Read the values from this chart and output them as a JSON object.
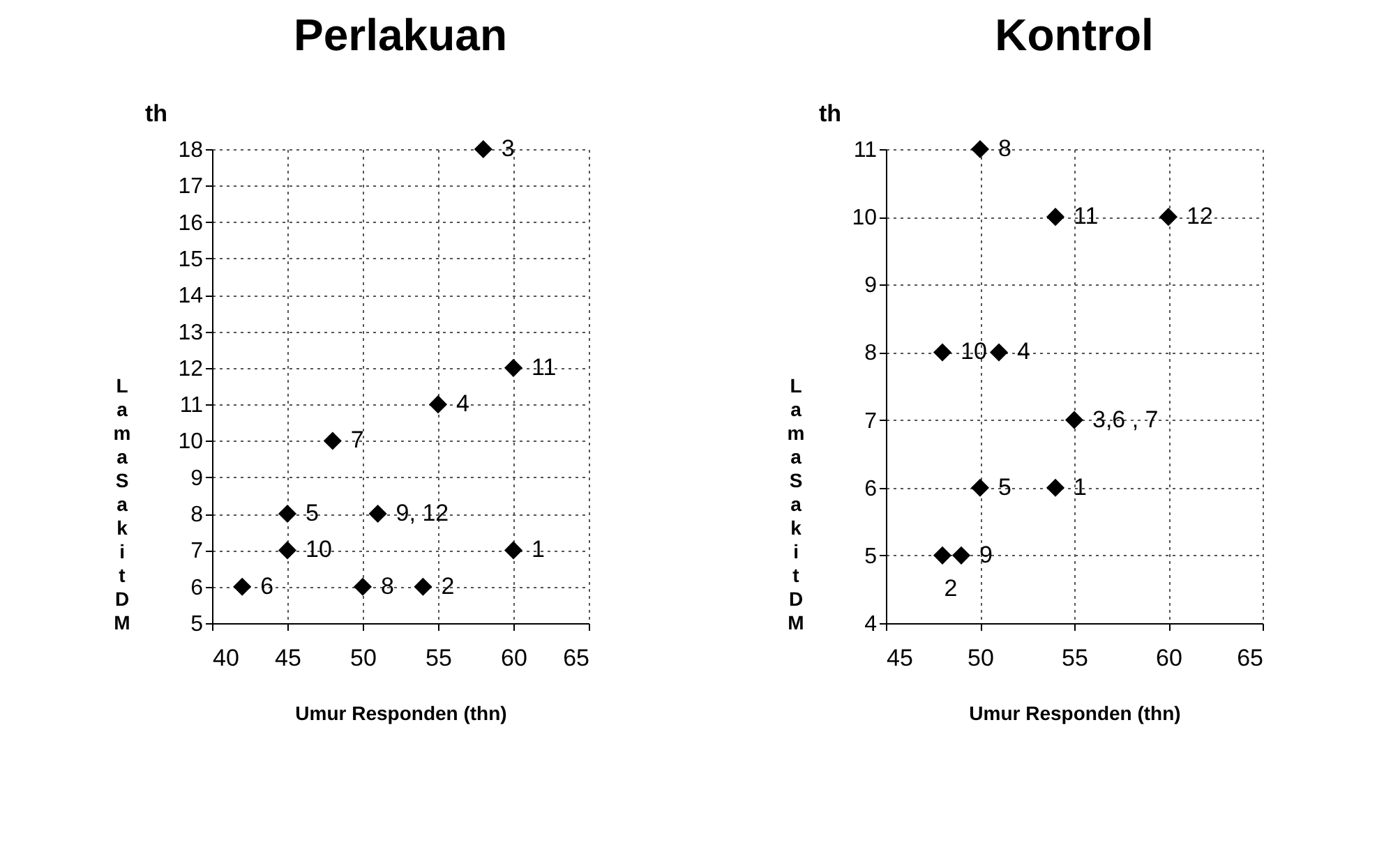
{
  "chart_data": [
    {
      "type": "scatter",
      "title": "Perlakuan",
      "xlabel": "Umur Responden (thn)",
      "ylabel": "Lama Sakit DM",
      "annotations": [
        "th",
        {
          "text": "3",
          "x": 58,
          "y": 18
        },
        {
          "text": "11",
          "x": 60,
          "y": 12
        },
        {
          "text": "4",
          "x": 55,
          "y": 11
        },
        {
          "text": "7",
          "x": 48,
          "y": 10
        },
        {
          "text": "5",
          "x": 45,
          "y": 8
        },
        {
          "text": "9, 12",
          "x": 51,
          "y": 8
        },
        {
          "text": "10",
          "x": 45,
          "y": 7
        },
        {
          "text": "1",
          "x": 60,
          "y": 7
        },
        {
          "text": "6",
          "x": 42,
          "y": 6
        },
        {
          "text": "8",
          "x": 50,
          "y": 6
        },
        {
          "text": "2",
          "x": 54,
          "y": 6
        }
      ],
      "x": [
        58,
        60,
        55,
        48,
        45,
        51,
        45,
        60,
        42,
        50,
        54
      ],
      "values": [
        18,
        12,
        11,
        10,
        8,
        8,
        7,
        7,
        6,
        6,
        6
      ],
      "color": "#000000",
      "marker": "diamond",
      "xlim": [
        40,
        65
      ],
      "xticks": [
        40,
        45,
        50,
        55,
        60,
        65
      ],
      "ylim": [
        5,
        18
      ],
      "yticks": [
        5,
        6,
        7,
        8,
        9,
        10,
        11,
        12,
        13,
        14,
        15,
        16,
        17,
        18
      ],
      "grid": true
    },
    {
      "type": "scatter",
      "title": "Kontrol",
      "xlabel": "Umur Responden (thn)",
      "ylabel": "Lama Sakit DM",
      "annotations": [
        "th",
        {
          "text": "8",
          "x": 50,
          "y": 11
        },
        {
          "text": "11",
          "x": 54,
          "y": 10
        },
        {
          "text": "12",
          "x": 60,
          "y": 10
        },
        {
          "text": "10",
          "x": 48,
          "y": 8
        },
        {
          "text": "4",
          "x": 51,
          "y": 8
        },
        {
          "text": "3,6 , 7",
          "x": 55,
          "y": 7
        },
        {
          "text": "5",
          "x": 50,
          "y": 6
        },
        {
          "text": "1",
          "x": 54,
          "y": 6
        },
        {
          "text": "2",
          "x": 48,
          "y": 5
        },
        {
          "text": "9",
          "x": 49,
          "y": 5
        }
      ],
      "x": [
        50,
        54,
        60,
        48,
        51,
        55,
        50,
        54,
        48,
        49
      ],
      "values": [
        11,
        10,
        10,
        8,
        8,
        7,
        6,
        6,
        5,
        5
      ],
      "color": "#000000",
      "marker": "diamond",
      "xlim": [
        45,
        65
      ],
      "xticks": [
        45,
        50,
        55,
        60,
        65
      ],
      "ylim": [
        4,
        11
      ],
      "yticks": [
        4,
        5,
        6,
        7,
        8,
        9,
        10,
        11
      ],
      "grid": true
    }
  ]
}
